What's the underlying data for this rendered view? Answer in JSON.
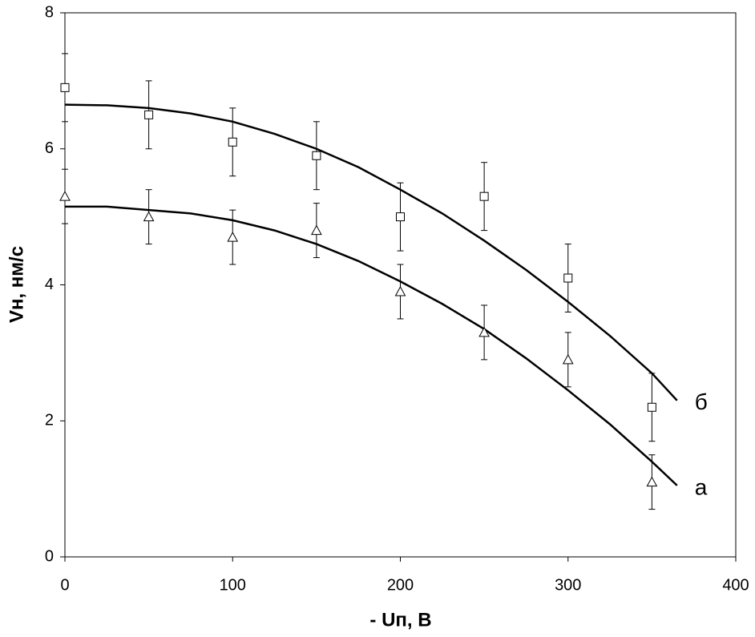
{
  "chart_data": {
    "type": "scatter",
    "x_label": "- Uп, В",
    "y_label": "Vн, нм/с",
    "xlim": [
      0,
      400
    ],
    "xticks": [
      0,
      100,
      200,
      300,
      400
    ],
    "ylim": [
      0,
      8
    ],
    "yticks": [
      0,
      2,
      4,
      6,
      8
    ],
    "series": [
      {
        "name": "б",
        "marker": "square",
        "color": "#000000",
        "x": [
          0,
          50,
          100,
          150,
          200,
          250,
          300,
          350
        ],
        "values": [
          6.9,
          6.5,
          6.1,
          5.9,
          5.0,
          5.3,
          4.1,
          2.2
        ],
        "errors": [
          0.5,
          0.5,
          0.5,
          0.5,
          0.5,
          0.5,
          0.5,
          0.5
        ],
        "fit_x": [
          0,
          25,
          50,
          75,
          100,
          125,
          150,
          175,
          200,
          225,
          250,
          275,
          300,
          325,
          350,
          365
        ],
        "fit_values": [
          6.65,
          6.64,
          6.6,
          6.52,
          6.4,
          6.22,
          6.0,
          5.73,
          5.4,
          5.05,
          4.65,
          4.22,
          3.75,
          3.25,
          2.7,
          2.3
        ]
      },
      {
        "name": "а",
        "marker": "triangle",
        "color": "#000000",
        "x": [
          0,
          50,
          100,
          150,
          200,
          250,
          300,
          350
        ],
        "values": [
          5.3,
          5.0,
          4.7,
          4.8,
          3.9,
          3.3,
          2.9,
          1.1
        ],
        "errors": [
          0.4,
          0.4,
          0.4,
          0.4,
          0.4,
          0.4,
          0.4,
          0.4
        ],
        "fit_x": [
          0,
          25,
          50,
          75,
          100,
          125,
          150,
          175,
          200,
          225,
          250,
          275,
          300,
          325,
          350,
          365
        ],
        "fit_values": [
          5.15,
          5.15,
          5.1,
          5.05,
          4.95,
          4.8,
          4.6,
          4.35,
          4.05,
          3.72,
          3.35,
          2.92,
          2.45,
          1.95,
          1.4,
          1.05
        ]
      }
    ]
  }
}
